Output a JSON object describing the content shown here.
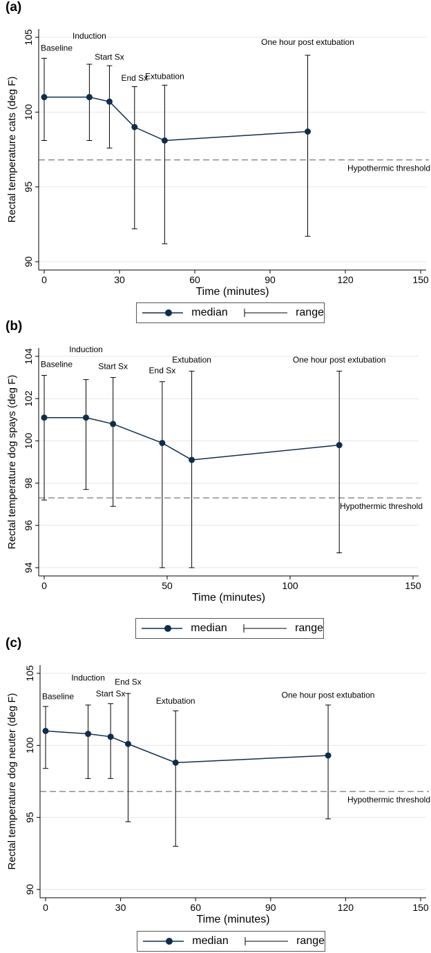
{
  "colors": {
    "series": "#0f2d4a",
    "grid": "#e6e6e6",
    "axis": "#000000",
    "threshold": "#555555",
    "legend_border": "#555555"
  },
  "legend": {
    "median_label": "median",
    "range_label": "range"
  },
  "chart_data": [
    {
      "type": "line",
      "panel_label": "(a)",
      "xlabel": "Time (minutes)",
      "ylabel": "Rectal temperature cats (deg F)",
      "xlim": [
        0,
        150
      ],
      "ylim": [
        90,
        105
      ],
      "xticks": [
        0,
        30,
        60,
        90,
        120,
        150
      ],
      "yticks": [
        90,
        95,
        100,
        105
      ],
      "grid": true,
      "legend_position": "bottom-center",
      "series": [
        {
          "name": "median",
          "x": [
            0,
            18,
            26,
            36,
            48,
            105
          ],
          "y": [
            101.0,
            101.0,
            100.7,
            99.0,
            98.1,
            98.7
          ],
          "range_low": [
            98.1,
            98.1,
            97.6,
            92.2,
            91.2,
            91.7
          ],
          "range_high": [
            103.6,
            103.2,
            103.1,
            101.7,
            101.8,
            103.8
          ]
        }
      ],
      "annotations": [
        {
          "text": "Baseline",
          "x": 0,
          "y": 104.1
        },
        {
          "text": "Induction",
          "x": 18,
          "y": 104.9
        },
        {
          "text": "Start Sx",
          "x": 26,
          "y": 103.5
        },
        {
          "text": "End Sx",
          "x": 36,
          "y": 102.1
        },
        {
          "text": "Extubation",
          "x": 48,
          "y": 102.2
        },
        {
          "text": "One hour post extubation",
          "x": 105,
          "y": 104.5
        }
      ],
      "threshold": {
        "value": 96.8,
        "label": "Hypothermic threshold"
      }
    },
    {
      "type": "line",
      "panel_label": "(b)",
      "xlabel": "Time (minutes)",
      "ylabel": "Rectal temperature dog spays (deg F)",
      "xlim": [
        0,
        150
      ],
      "ylim": [
        94,
        104
      ],
      "xticks": [
        0,
        50,
        100,
        150
      ],
      "yticks": [
        94,
        96,
        98,
        100,
        102,
        104
      ],
      "grid": true,
      "legend_position": "bottom-center",
      "series": [
        {
          "name": "median",
          "x": [
            0,
            17,
            28,
            48,
            60,
            120
          ],
          "y": [
            101.1,
            101.1,
            100.8,
            99.9,
            99.1,
            99.8
          ],
          "range_low": [
            97.2,
            97.7,
            96.9,
            94.0,
            94.0,
            94.7
          ],
          "range_high": [
            103.1,
            102.9,
            103.0,
            102.8,
            103.3,
            103.3
          ]
        }
      ],
      "annotations": [
        {
          "text": "Baseline",
          "x": 0,
          "y": 103.5
        },
        {
          "text": "Induction",
          "x": 17,
          "y": 104.2
        },
        {
          "text": "Start Sx",
          "x": 28,
          "y": 103.4
        },
        {
          "text": "End Sx",
          "x": 48,
          "y": 103.2
        },
        {
          "text": "Extubation",
          "x": 60,
          "y": 103.7
        },
        {
          "text": "One hour post extubation",
          "x": 120,
          "y": 103.7
        }
      ],
      "threshold": {
        "value": 97.3,
        "label": "Hypothermic threshold"
      }
    },
    {
      "type": "line",
      "panel_label": "(c)",
      "xlabel": "Time (minutes)",
      "ylabel": "Rectal temperature dog neuter (deg F)",
      "xlim": [
        0,
        150
      ],
      "ylim": [
        90,
        105
      ],
      "xticks": [
        0,
        30,
        60,
        90,
        120,
        150
      ],
      "yticks": [
        90,
        95,
        100,
        105
      ],
      "grid": true,
      "legend_position": "bottom-center",
      "series": [
        {
          "name": "median",
          "x": [
            0,
            17,
            26,
            33,
            52,
            113
          ],
          "y": [
            101.0,
            100.8,
            100.6,
            100.1,
            98.8,
            99.3
          ],
          "range_low": [
            98.4,
            97.7,
            97.7,
            94.7,
            93.0,
            94.9
          ],
          "range_high": [
            102.7,
            102.8,
            102.9,
            103.6,
            102.4,
            102.8
          ]
        }
      ],
      "annotations": [
        {
          "text": "Baseline",
          "x": 0,
          "y": 103.2
        },
        {
          "text": "Induction",
          "x": 17,
          "y": 104.5
        },
        {
          "text": "Start Sx",
          "x": 26,
          "y": 103.4
        },
        {
          "text": "End Sx",
          "x": 33,
          "y": 104.2
        },
        {
          "text": "Extubation",
          "x": 52,
          "y": 102.9
        },
        {
          "text": "One hour post extubation",
          "x": 113,
          "y": 103.3
        }
      ],
      "threshold": {
        "value": 96.8,
        "label": "Hypothermic threshold"
      }
    }
  ]
}
